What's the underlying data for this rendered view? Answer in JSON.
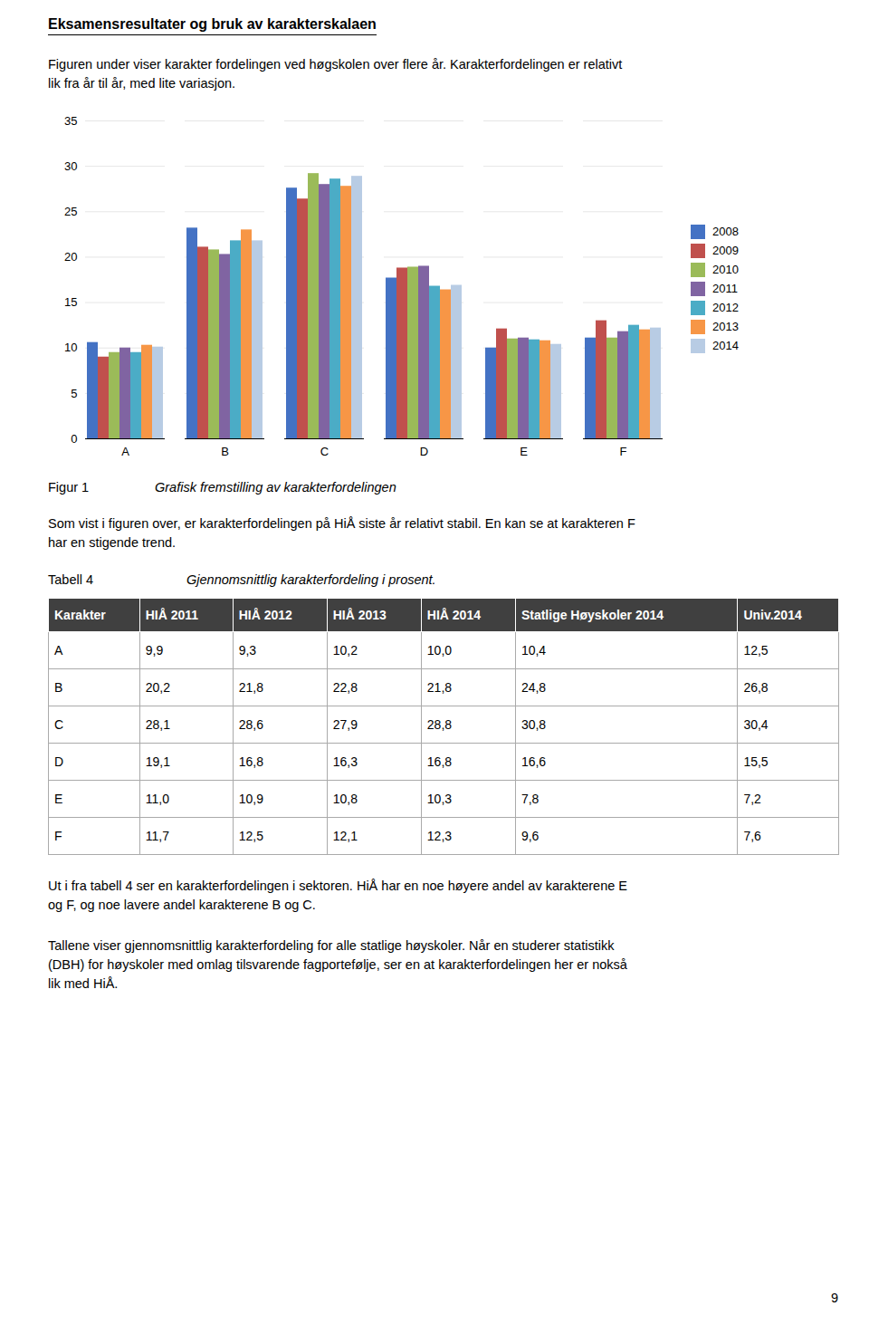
{
  "page": {
    "title": "Eksamensresultater og bruk av karakterskalaen",
    "intro": [
      "Figuren under viser karakter fordelingen ved høgskolen over flere år. Karakterfordelingen er relativt",
      "lik fra år til år, med lite variasjon."
    ],
    "figure_label": "Figur 1",
    "figure_caption": "Grafisk fremstilling av karakterfordelingen",
    "body1": [
      "Som vist i figuren over, er karakterfordelingen på HiÅ siste år relativt stabil. En kan se at karakteren F",
      "har en stigende trend."
    ],
    "table_label": "Tabell 4",
    "table_caption": "Gjennomsnittlig karakterfordeling i prosent.",
    "table": {
      "headers": [
        "Karakter",
        "HIÅ 2011",
        "HIÅ 2012",
        "HIÅ 2013",
        "HIÅ 2014",
        "Statlige Høyskoler 2014",
        "Univ.2014"
      ],
      "rows": [
        [
          "A",
          "9,9",
          "9,3",
          "10,2",
          "10,0",
          "10,4",
          "12,5"
        ],
        [
          "B",
          "20,2",
          "21,8",
          "22,8",
          "21,8",
          "24,8",
          "26,8"
        ],
        [
          "C",
          "28,1",
          "28,6",
          "27,9",
          "28,8",
          "30,8",
          "30,4"
        ],
        [
          "D",
          "19,1",
          "16,8",
          "16,3",
          "16,8",
          "16,6",
          "15,5"
        ],
        [
          "E",
          "11,0",
          "10,9",
          "10,8",
          "10,3",
          "7,8",
          "7,2"
        ],
        [
          "F",
          "11,7",
          "12,5",
          "12,1",
          "12,3",
          "9,6",
          "7,6"
        ]
      ]
    },
    "body2": [
      "Ut i fra tabell 4 ser en karakterfordelingen i sektoren. HiÅ har en noe høyere andel av karakterene E",
      "og F, og noe lavere andel karakterene B og C."
    ],
    "body3": [
      "Tallene viser gjennomsnittlig karakterfordeling for alle statlige høyskoler. Når en studerer statistikk",
      "(DBH) for høyskoler med omlag tilsvarende fagportefølje, ser en at karakterfordelingen her er nokså",
      "lik med HiÅ."
    ],
    "page_number": "9"
  },
  "chart_data": {
    "type": "bar",
    "categories": [
      "A",
      "B",
      "C",
      "D",
      "E",
      "F"
    ],
    "series": [
      {
        "name": "2008",
        "color": "#4472C4",
        "values": [
          10.6,
          23.2,
          27.6,
          17.7,
          10.0,
          11.1
        ]
      },
      {
        "name": "2009",
        "color": "#C0504D",
        "values": [
          9.0,
          21.1,
          26.4,
          18.8,
          12.1,
          13.0
        ]
      },
      {
        "name": "2010",
        "color": "#9BBB59",
        "values": [
          9.5,
          20.8,
          29.2,
          18.9,
          11.0,
          11.1
        ]
      },
      {
        "name": "2011",
        "color": "#8064A2",
        "values": [
          10.0,
          20.3,
          28.0,
          19.0,
          11.1,
          11.8
        ]
      },
      {
        "name": "2012",
        "color": "#4BACC6",
        "values": [
          9.5,
          21.8,
          28.6,
          16.8,
          10.9,
          12.5
        ]
      },
      {
        "name": "2013",
        "color": "#F79646",
        "values": [
          10.3,
          23.0,
          27.8,
          16.4,
          10.8,
          12.0
        ]
      },
      {
        "name": "2014",
        "color": "#B8CCE4",
        "values": [
          10.1,
          21.8,
          28.9,
          16.9,
          10.4,
          12.2
        ]
      }
    ],
    "ylim": [
      0,
      35
    ],
    "yticks": [
      0,
      5,
      10,
      15,
      20,
      25,
      30,
      35
    ],
    "grid": true,
    "legend": "right"
  }
}
